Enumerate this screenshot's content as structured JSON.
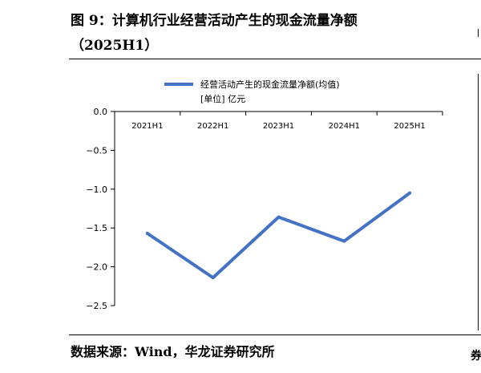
{
  "figure": {
    "title": "图 9：计算机行业经营活动产生的现金流量净额",
    "subtitle": "（2025H1）",
    "source": "数据来源：Wind，华龙证券研究所",
    "edge_right_bottom": "券"
  },
  "chart_data": {
    "type": "line",
    "categories": [
      "2021H1",
      "2022H1",
      "2023H1",
      "2024H1",
      "2025H1"
    ],
    "series": [
      {
        "name": "经营活动产生的现金流量净额(均值)",
        "values": [
          -1.57,
          -2.14,
          -1.36,
          -1.67,
          -1.05
        ],
        "color": "#4472c4"
      }
    ],
    "unit_note": "[单位] 亿元",
    "ylim": [
      -2.5,
      0.0
    ],
    "yticks": [
      "0.0",
      "-0.5",
      "-1.0",
      "-1.5",
      "-2.0",
      "-2.5"
    ],
    "xlabel": "",
    "ylabel": "",
    "legend_position": "top-center",
    "grid": false
  }
}
